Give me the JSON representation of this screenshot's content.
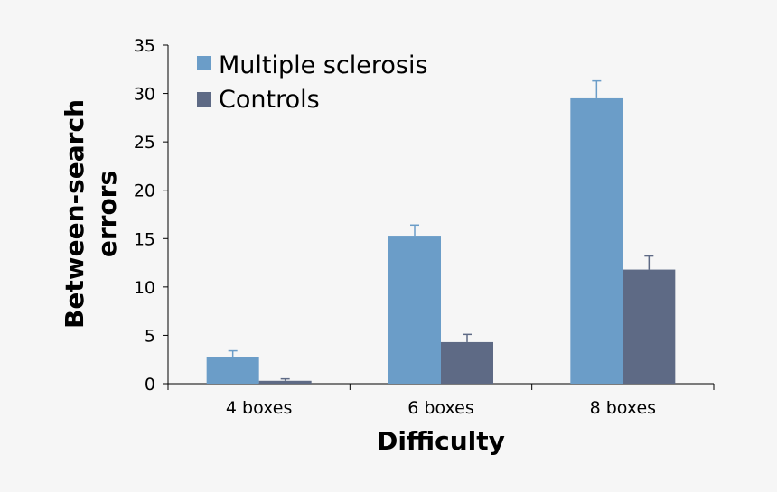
{
  "chart_data": {
    "type": "bar",
    "categories": [
      "4 boxes",
      "6 boxes",
      "8 boxes"
    ],
    "series": [
      {
        "name": "Multiple sclerosis",
        "color": "#6b9dc8",
        "values": [
          2.8,
          15.3,
          29.5
        ],
        "errors": [
          0.6,
          1.1,
          1.8
        ]
      },
      {
        "name": "Controls",
        "color": "#5e6a85",
        "values": [
          0.3,
          4.3,
          11.8
        ],
        "errors": [
          0.2,
          0.8,
          1.4
        ]
      }
    ],
    "xlabel": "Difficulty",
    "ylabel_lines": [
      "Between-search",
      "errors"
    ],
    "ylim": [
      0,
      35
    ],
    "yticks": [
      0,
      5,
      10,
      15,
      20,
      25,
      30,
      35
    ],
    "grid": false,
    "legend_position": "top-left"
  }
}
